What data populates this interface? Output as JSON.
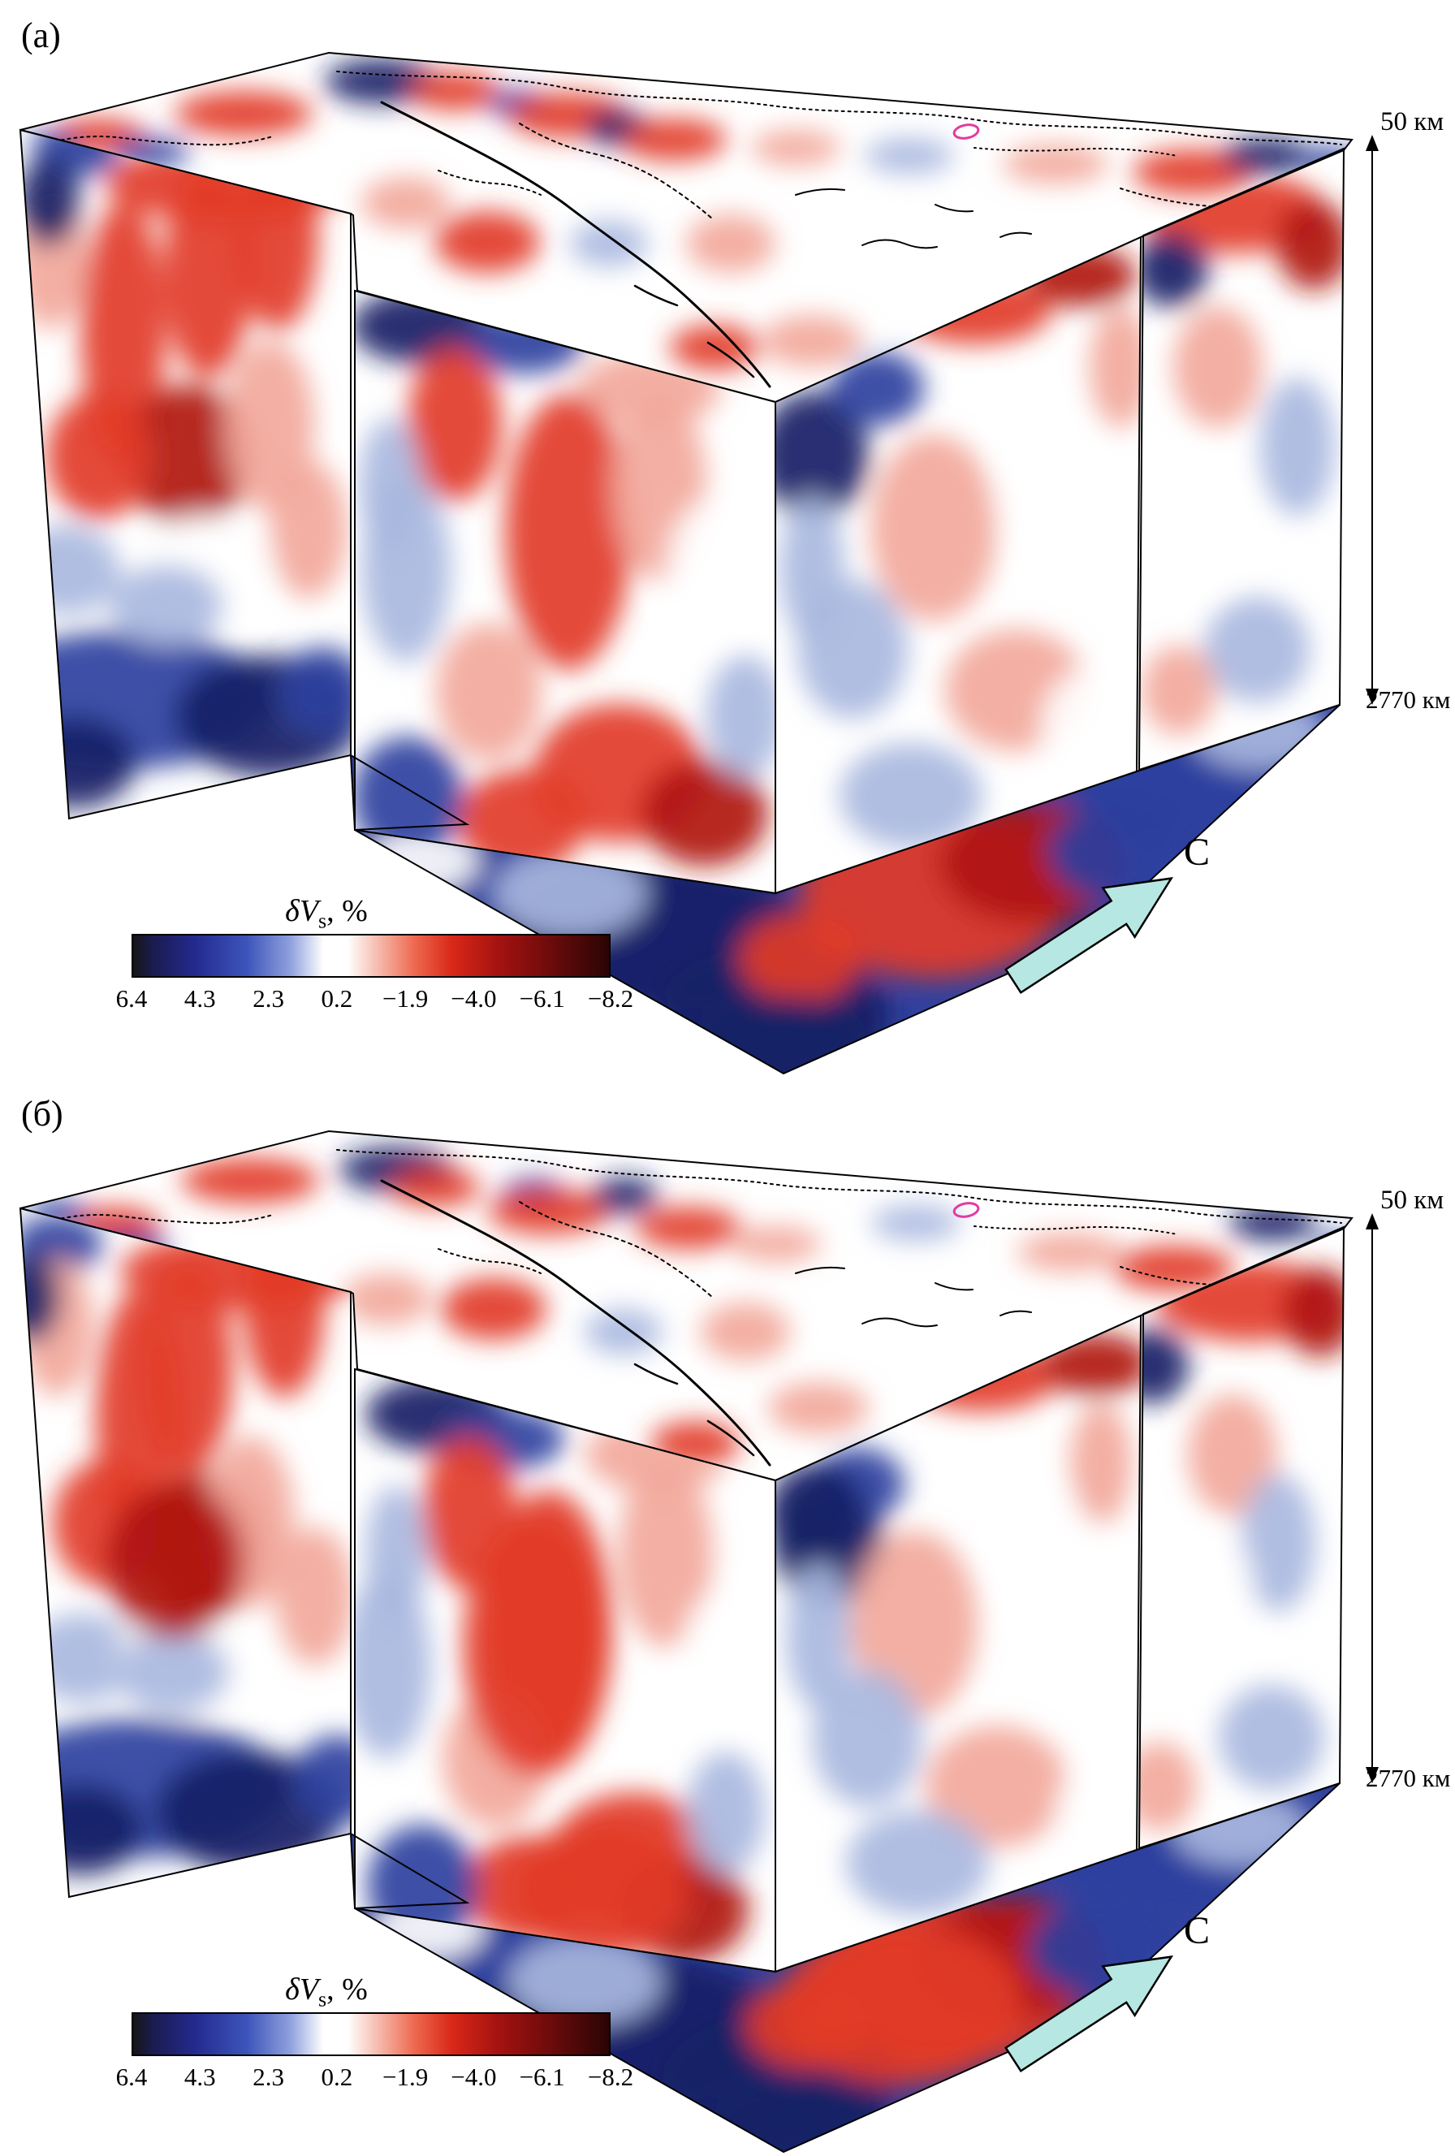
{
  "figure": {
    "panel_a": {
      "label": "(а)"
    },
    "panel_b": {
      "label": "(б)"
    },
    "depth_axis": {
      "top_label": "50 км",
      "bottom_label": "2770 км"
    },
    "north_arrow": {
      "label": "С",
      "fill": "#b7e7e2"
    },
    "colorbar": {
      "title_prefix": "δ",
      "title_symbol": "V",
      "title_sub": "s",
      "title_suffix": ", %",
      "ticks": [
        "6.4",
        "4.3",
        "2.3",
        "0.2",
        "−1.9",
        "−4.0",
        "−6.1",
        "−8.2"
      ],
      "gradient_stops": [
        [
          "#151515",
          0
        ],
        [
          "#1b1b4e",
          4
        ],
        [
          "#232a8e",
          13
        ],
        [
          "#3d55bb",
          24
        ],
        [
          "#8fa0dc",
          33
        ],
        [
          "#ffffff",
          40
        ],
        [
          "#ffffff",
          45
        ],
        [
          "#f6c0b4",
          51
        ],
        [
          "#ee6a50",
          59
        ],
        [
          "#d92818",
          67
        ],
        [
          "#a31210",
          77
        ],
        [
          "#6b0b0b",
          88
        ],
        [
          "#2a0404",
          100
        ]
      ]
    },
    "map_overlay": {
      "contour_color": "#e23ba0"
    },
    "palette": {
      "red": "#e23b28",
      "deep_red": "#b01510",
      "pale_red": "#f2a89b",
      "blue": "#2b3f9e",
      "navy": "#141f66",
      "pale_blue": "#a9b8e0",
      "floor_blue": "#31429f"
    }
  }
}
